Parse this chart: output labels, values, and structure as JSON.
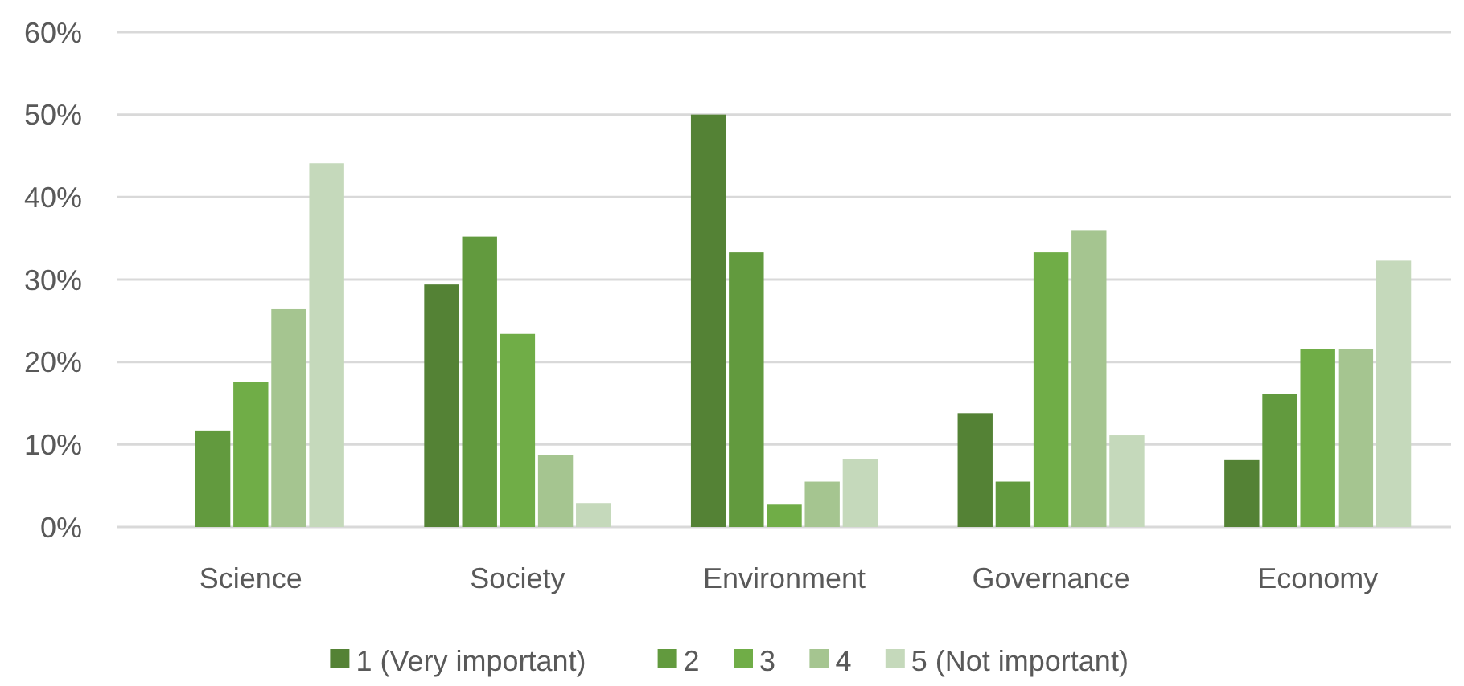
{
  "chart_data": {
    "type": "bar",
    "categories": [
      "Science",
      "Society",
      "Environment",
      "Governance",
      "Economy"
    ],
    "series": [
      {
        "name": "1 (Very important)",
        "color": "#548235",
        "values": [
          0,
          29.4,
          50,
          13.8,
          8.1
        ]
      },
      {
        "name": "2",
        "color": "#629a3e",
        "values": [
          11.7,
          35.2,
          33.3,
          5.5,
          16.1
        ]
      },
      {
        "name": "3",
        "color": "#70ad47",
        "values": [
          17.6,
          23.4,
          2.7,
          33.3,
          21.6
        ]
      },
      {
        "name": "4",
        "color": "#a5c590",
        "values": [
          26.4,
          8.7,
          5.5,
          36,
          21.6
        ]
      },
      {
        "name": "5 (Not important)",
        "color": "#c5d9bb",
        "values": [
          44.1,
          2.9,
          8.2,
          11.1,
          32.3
        ]
      }
    ],
    "ylim": [
      0,
      60
    ],
    "yticks": [
      {
        "value": 0,
        "label": "0%"
      },
      {
        "value": 10,
        "label": "10%"
      },
      {
        "value": 20,
        "label": "20%"
      },
      {
        "value": 30,
        "label": "30%"
      },
      {
        "value": 40,
        "label": "40%"
      },
      {
        "value": 50,
        "label": "50%"
      },
      {
        "value": 60,
        "label": "60%"
      }
    ],
    "grid": "y",
    "legend": "bottom"
  }
}
